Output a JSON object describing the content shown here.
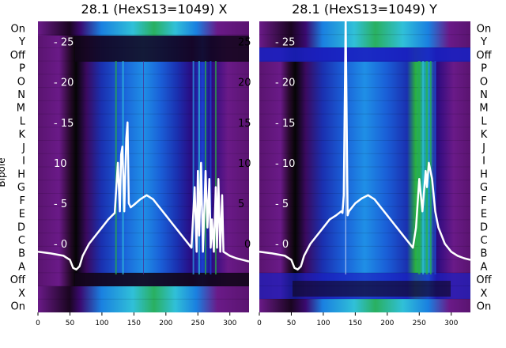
{
  "chart_data": [
    {
      "type": "heatmap",
      "title": "28.1 (HexS13=1049) X",
      "ylabel": "Bipole",
      "row_labels_left": [
        "On",
        "Y",
        "Off",
        "P",
        "O",
        "N",
        "M",
        "L",
        "K",
        "J",
        "I",
        "H",
        "G",
        "F",
        "E",
        "D",
        "C",
        "B",
        "A",
        "Off",
        "X",
        "On"
      ],
      "x_ticks": [
        0,
        50,
        100,
        150,
        200,
        250,
        300
      ],
      "xlim": [
        0,
        330
      ],
      "trace_ticks": [
        0,
        5,
        10,
        15,
        20,
        25
      ],
      "trace_tick_labels": [
        "- 0",
        "- 5",
        "10",
        "- 15",
        "- 20",
        "- 25"
      ],
      "trace_ylim": [
        -8.5,
        27.5
      ],
      "trace": {
        "x": [
          0,
          20,
          40,
          50,
          55,
          60,
          65,
          70,
          80,
          90,
          100,
          110,
          120,
          125,
          128,
          130,
          132,
          135,
          138,
          140,
          142,
          145,
          150,
          160,
          170,
          180,
          190,
          200,
          210,
          220,
          230,
          240,
          245,
          248,
          250,
          252,
          255,
          258,
          262,
          265,
          268,
          270,
          272,
          275,
          278,
          280,
          282,
          285,
          288,
          290,
          300,
          310,
          320,
          330
        ],
        "y": [
          -1,
          -1.2,
          -1.5,
          -2,
          -3,
          -3.2,
          -2.8,
          -1.5,
          0,
          1,
          2,
          3,
          3.8,
          10,
          4,
          11,
          12,
          4,
          13,
          15,
          5,
          4.5,
          4.8,
          5.5,
          6,
          5.5,
          4.5,
          3.5,
          2.5,
          1.5,
          0.5,
          -0.5,
          7,
          -1,
          9,
          1,
          10,
          -1,
          9,
          2,
          8,
          -0.5,
          3,
          -1,
          7,
          -0.5,
          8,
          -1,
          6,
          -1,
          -1.5,
          -1.8,
          -2,
          -2.2
        ]
      }
    },
    {
      "type": "heatmap",
      "title": "28.1 (HexS13=1049) Y",
      "row_labels_right": [
        "On",
        "Y",
        "Off",
        "P",
        "O",
        "N",
        "M",
        "L",
        "K",
        "J",
        "I",
        "H",
        "G",
        "F",
        "E",
        "D",
        "C",
        "B",
        "A",
        "Off",
        "X",
        "On"
      ],
      "x_ticks": [
        0,
        50,
        100,
        150,
        200,
        250,
        300
      ],
      "xlim": [
        0,
        330
      ],
      "trace_ticks": [
        0,
        5,
        10,
        15,
        20,
        25
      ],
      "trace_tick_labels": [
        "- 0",
        "- 5",
        "- 10",
        "- 15",
        "- 20",
        "- 25"
      ],
      "trace_ylim": [
        -8.5,
        27.5
      ],
      "trace": {
        "x": [
          0,
          20,
          40,
          50,
          55,
          60,
          65,
          70,
          80,
          90,
          100,
          110,
          120,
          128,
          130,
          132,
          135,
          138,
          140,
          142,
          145,
          150,
          160,
          170,
          180,
          190,
          200,
          210,
          220,
          230,
          240,
          245,
          250,
          255,
          260,
          262,
          265,
          270,
          275,
          280,
          285,
          290,
          300,
          310,
          320,
          330
        ],
        "y": [
          -1,
          -1.2,
          -1.5,
          -2,
          -3,
          -3.2,
          -2.8,
          -1.5,
          0,
          1,
          2,
          3,
          3.5,
          4,
          3.8,
          6,
          28,
          3.5,
          4,
          4.2,
          4.5,
          5,
          5.6,
          6,
          5.5,
          4.5,
          3.5,
          2.5,
          1.5,
          0.5,
          -0.5,
          2,
          8,
          4,
          9,
          7,
          10,
          8,
          4,
          2,
          1,
          0,
          -1,
          -1.5,
          -1.8,
          -2
        ]
      }
    }
  ],
  "colors": {
    "purple_dark": "#4a0a5a",
    "purple": "#7a1f9a",
    "black": "#0a0a0a",
    "blue": "#1a4fd8",
    "light_blue": "#2a9fe8",
    "cyan": "#30c4d8",
    "green": "#2ab040",
    "trace": "#ffffff"
  }
}
